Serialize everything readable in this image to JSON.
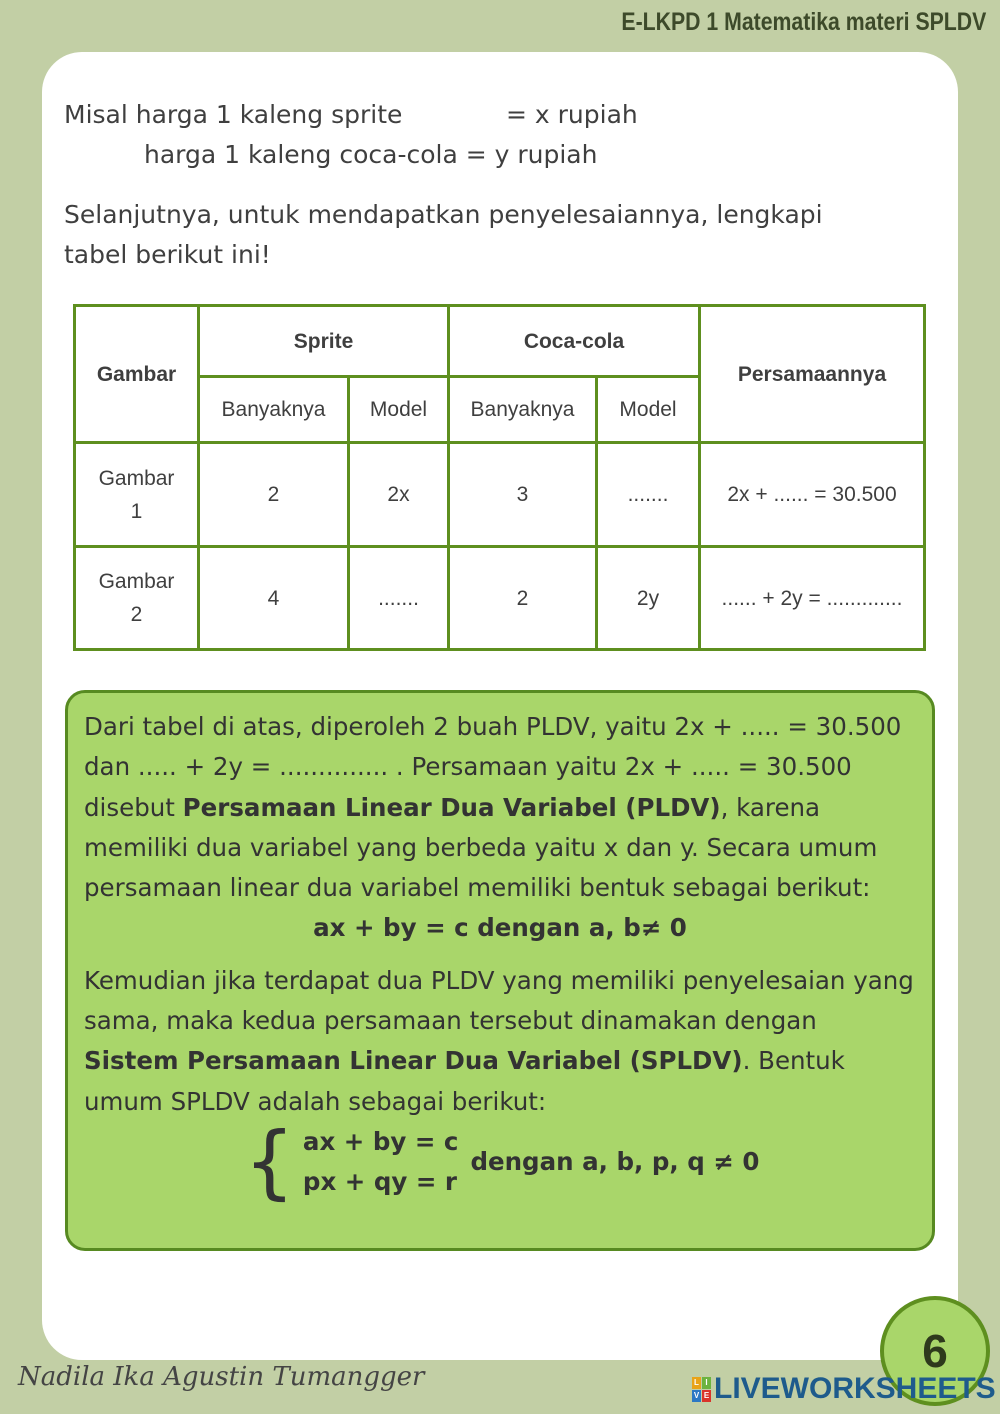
{
  "header": "E-LKPD 1 Matematika materi SPLDV",
  "intro": {
    "line1a": "Misal harga 1 kaleng sprite",
    "line1b": "= x rupiah",
    "line2": "harga 1 kaleng coca-cola = y rupiah",
    "para": "Selanjutnya, untuk mendapatkan penyelesaiannya, lengkapi",
    "para2": "tabel berikut ini!"
  },
  "table": {
    "h_gambar": "Gambar",
    "h_sprite": "Sprite",
    "h_coca": "Coca-cola",
    "h_pers": "Persamaannya",
    "sub": [
      "Banyaknya",
      "Model",
      "Banyaknya",
      "Model"
    ],
    "rows": [
      [
        "Gambar 1",
        "2",
        "2x",
        "3",
        ".......",
        "2x + ...... = 30.500"
      ],
      [
        "Gambar 2",
        "4",
        ".......",
        "2",
        "2y",
        "...... + 2y = ............."
      ]
    ]
  },
  "box": {
    "p1a": "Dari tabel di atas, diperoleh 2 buah PLDV, yaitu 2x + ..... = 30.500 dan ..... + 2y = .............. . Persamaan yaitu 2x + ..... = 30.500 disebut ",
    "p1b": "Persamaan Linear Dua Variabel (PLDV)",
    "p1c": ", karena memiliki dua variabel yang berbeda yaitu x dan y. Secara umum persamaan linear dua variabel memiliki bentuk sebagai berikut:",
    "f1": "ax + by = c dengan a, b≠ 0",
    "p2a": "Kemudian jika terdapat dua PLDV yang memiliki penyelesaian yang sama, maka kedua persamaan tersebut dinamakan dengan ",
    "p2b": "Sistem Persamaan Linear Dua Variabel (SPLDV)",
    "p2c": ". Bentuk umum SPLDV adalah sebagai berikut:",
    "eq1": "ax + by = c",
    "eq2": "px + qy = r",
    "cond": "dengan a, b, p, q ≠ 0"
  },
  "footer": {
    "signature": "Nadila Ika Agustin Tumangger",
    "page": "6",
    "brand": "LIVEWORKSHEETS"
  }
}
